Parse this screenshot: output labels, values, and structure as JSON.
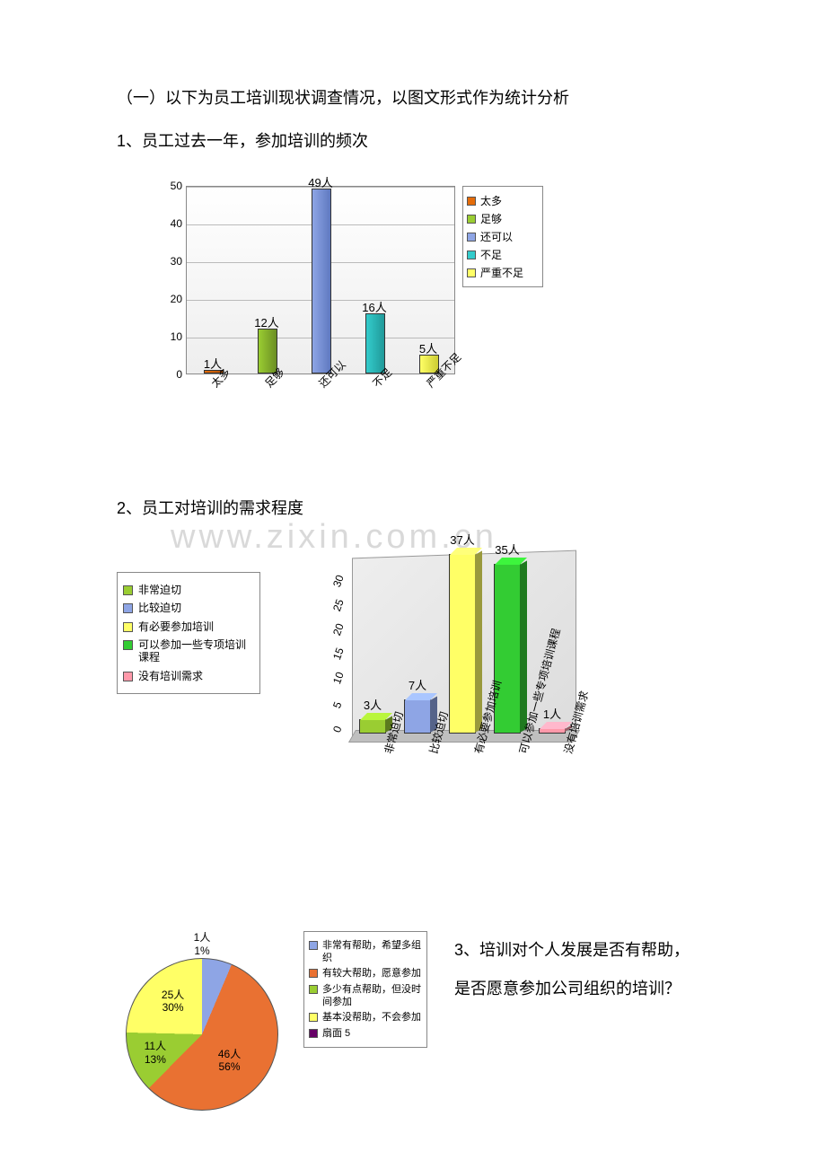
{
  "heading": "（一）以下为员工培训现状调查情况，以图文形式作为统计分析",
  "section1": {
    "title": "1、员工过去一年，参加培训的频次",
    "chart": {
      "type": "bar",
      "categories": [
        "太多",
        "足够",
        "还可以",
        "不足",
        "严重不足"
      ],
      "values": [
        1,
        12,
        49,
        16,
        5
      ],
      "value_labels": [
        "1人",
        "12人",
        "49人",
        "16人",
        "5人"
      ],
      "colors_fill": [
        "#e46c0a",
        "#9acd32",
        "#8ea5e5",
        "#33cccc",
        "#ffff66"
      ],
      "colors_side": [
        "#b55308",
        "#6b8e23",
        "#5f79c0",
        "#209999",
        "#cccc33"
      ],
      "ymax": 50,
      "ytick_step": 10,
      "plot_bg": "#f0f0f0",
      "grid_color": "#bbbbbb",
      "font_size": 12
    },
    "legend": {
      "items": [
        "太多",
        "足够",
        "还可以",
        "不足",
        "严重不足"
      ],
      "swatches": [
        "#e46c0a",
        "#9acd32",
        "#8ea5e5",
        "#33cccc",
        "#ffff66"
      ]
    }
  },
  "section2": {
    "title": "2、员工对培训的需求程度",
    "legend": {
      "items": [
        "非常迫切",
        "比较迫切",
        "有必要参加培训",
        "可以参加一些专项培训课程",
        "没有培训需求"
      ],
      "swatches": [
        "#9acd32",
        "#8ea5e5",
        "#ffff66",
        "#33cc33",
        "#ff99aa"
      ]
    },
    "chart": {
      "type": "bar-3d",
      "categories": [
        "非常迫切",
        "比较迫切",
        "有必要参加培训",
        "可以参加一些专项培训课程",
        "没有培训需求"
      ],
      "values": [
        3,
        7,
        37,
        35,
        1
      ],
      "value_labels": [
        "3人",
        "7人",
        "37人",
        "35人",
        "1人"
      ],
      "colors": [
        "#9acd32",
        "#8ea5e5",
        "#ffff66",
        "#33cc33",
        "#ff99aa"
      ],
      "ymax": 37,
      "yticks": [
        0,
        5,
        10,
        15,
        20,
        25,
        30
      ],
      "font_size": 12
    },
    "watermark": "www.zixin.com.cn"
  },
  "section3": {
    "title": "3、培训对个人发展是否有帮助，是否愿意参加公司组织的培训？",
    "title_line1": "3、培训对个人发展是否有帮助，",
    "title_line2": "是否愿意参加公司组织的培训？",
    "pie": {
      "type": "pie",
      "slices": [
        {
          "label": "非常有帮助，希望多组织",
          "value": 25,
          "pct": 30,
          "color": "#8ea5e5",
          "text": "25人\n30%"
        },
        {
          "label": "有较大帮助，愿意参加",
          "value": 46,
          "pct": 56,
          "color": "#e97132",
          "text": "46人\n56%"
        },
        {
          "label": "多少有点帮助，但没时间参加",
          "value": 11,
          "pct": 13,
          "color": "#9acd32",
          "text": "11人\n13%"
        },
        {
          "label": "基本没帮助，不会参加",
          "value": 1,
          "pct": 1,
          "color": "#ffff66",
          "text": "1人\n1%"
        }
      ],
      "outside_label": {
        "text": "1人",
        "pct": "1%"
      }
    },
    "legend": {
      "items": [
        "非常有帮助，希望多组织",
        "有较大帮助，愿意参加",
        "多少有点帮助，但没时间参加",
        "基本没帮助，不会参加",
        "扇面 5"
      ],
      "swatches": [
        "#8ea5e5",
        "#e97132",
        "#9acd32",
        "#ffff66",
        "#660066"
      ]
    }
  }
}
